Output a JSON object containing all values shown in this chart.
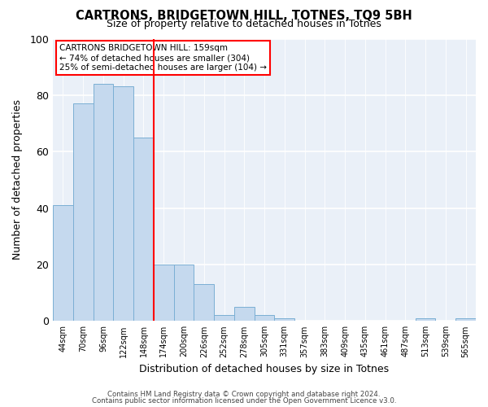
{
  "title": "CARTRONS, BRIDGETOWN HILL, TOTNES, TQ9 5BH",
  "subtitle": "Size of property relative to detached houses in Totnes",
  "xlabel": "Distribution of detached houses by size in Totnes",
  "ylabel": "Number of detached properties",
  "bar_color": "#c5d9ee",
  "bar_edge_color": "#7bafd4",
  "background_color": "#eaf0f8",
  "tick_labels": [
    "44sqm",
    "70sqm",
    "96sqm",
    "122sqm",
    "148sqm",
    "174sqm",
    "200sqm",
    "226sqm",
    "252sqm",
    "278sqm",
    "305sqm",
    "331sqm",
    "357sqm",
    "383sqm",
    "409sqm",
    "435sqm",
    "461sqm",
    "487sqm",
    "513sqm",
    "539sqm",
    "565sqm"
  ],
  "bar_values": [
    41,
    77,
    84,
    83,
    65,
    20,
    20,
    13,
    2,
    5,
    2,
    1,
    0,
    0,
    0,
    0,
    0,
    0,
    1,
    0,
    1
  ],
  "ylim": [
    0,
    100
  ],
  "yticks": [
    0,
    20,
    40,
    60,
    80,
    100
  ],
  "red_line_x": 4.5,
  "annotation_title": "CARTRONS BRIDGETOWN HILL: 159sqm",
  "annotation_line1": "← 74% of detached houses are smaller (304)",
  "annotation_line2": "25% of semi-detached houses are larger (104) →",
  "footer1": "Contains HM Land Registry data © Crown copyright and database right 2024.",
  "footer2": "Contains public sector information licensed under the Open Government Licence v3.0."
}
